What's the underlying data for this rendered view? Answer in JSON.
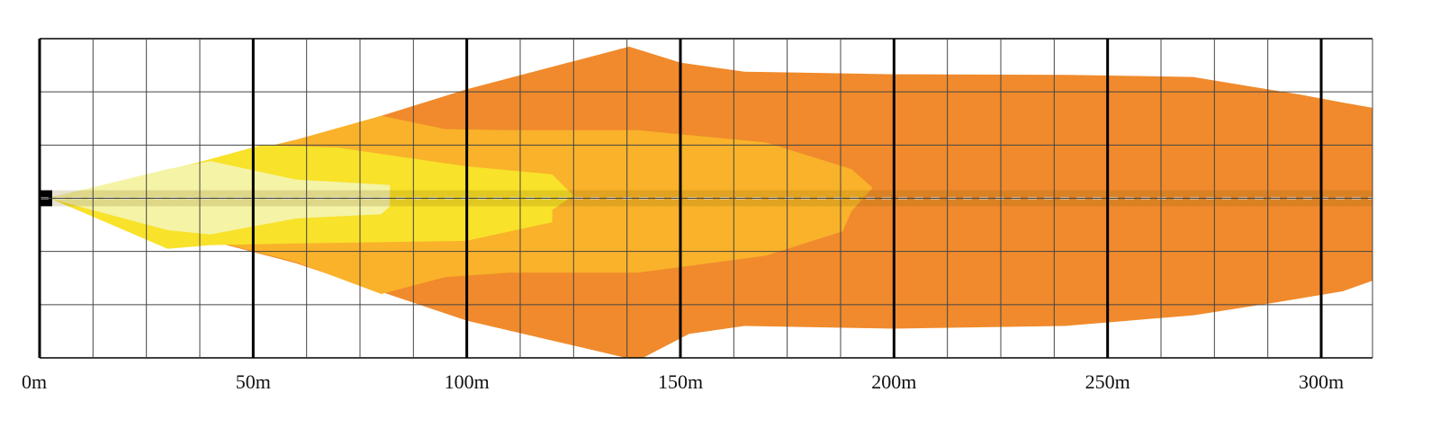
{
  "chart_data": {
    "type": "area",
    "title": "",
    "xlabel": "",
    "ylabel": "",
    "x_unit": "m",
    "x_range": [
      0,
      312
    ],
    "y_range": [
      -3,
      3
    ],
    "x_major_step": 50,
    "x_minor_step": 12.5,
    "y_step": 1,
    "grid": true,
    "x_tick_labels": [
      "0m",
      "50m",
      "100m",
      "150m",
      "200m",
      "250m",
      "300m"
    ],
    "x_tick_values": [
      0,
      50,
      100,
      150,
      200,
      250,
      300
    ],
    "center_road_band_half_width": 0.15,
    "colors": {
      "zone_outer": "#F08A2C",
      "zone_mid": "#F9B22A",
      "zone_inner": "#F8E22A",
      "zone_near": "#F5F3A6",
      "road_band": "#7A5A00",
      "center_dash": "#E8E8E8",
      "grid_minor": "#444444",
      "grid_major": "#000000"
    },
    "zones": [
      {
        "name": "",
        "color_key": "zone_outer",
        "outline": [
          [
            3,
            0.02
          ],
          [
            60,
            1.05
          ],
          [
            100,
            2.05
          ],
          [
            138,
            2.85
          ],
          [
            142,
            2.75
          ],
          [
            150,
            2.55
          ],
          [
            165,
            2.38
          ],
          [
            200,
            2.33
          ],
          [
            240,
            2.32
          ],
          [
            270,
            2.28
          ],
          [
            285,
            2.08
          ],
          [
            295,
            1.95
          ],
          [
            305,
            1.8
          ],
          [
            312,
            1.7
          ],
          [
            312,
            -1.55
          ],
          [
            305,
            -1.75
          ],
          [
            290,
            -1.95
          ],
          [
            270,
            -2.2
          ],
          [
            240,
            -2.4
          ],
          [
            200,
            -2.45
          ],
          [
            165,
            -2.4
          ],
          [
            152,
            -2.55
          ],
          [
            140,
            -3.05
          ],
          [
            100,
            -2.3
          ],
          [
            60,
            -1.22
          ],
          [
            3,
            -0.02
          ]
        ]
      },
      {
        "name": "",
        "color_key": "zone_mid",
        "outline": [
          [
            3,
            0.02
          ],
          [
            60,
            1.1
          ],
          [
            80,
            1.55
          ],
          [
            95,
            1.3
          ],
          [
            110,
            1.28
          ],
          [
            140,
            1.28
          ],
          [
            170,
            1.05
          ],
          [
            190,
            0.55
          ],
          [
            195,
            0.2
          ],
          [
            190,
            -0.25
          ],
          [
            188,
            -0.62
          ],
          [
            170,
            -1.08
          ],
          [
            140,
            -1.4
          ],
          [
            110,
            -1.4
          ],
          [
            95,
            -1.48
          ],
          [
            80,
            -1.8
          ],
          [
            60,
            -1.2
          ],
          [
            3,
            -0.02
          ]
        ]
      },
      {
        "name": "",
        "color_key": "zone_inner",
        "outline": [
          [
            3,
            0.02
          ],
          [
            36,
            0.65
          ],
          [
            52,
            1.0
          ],
          [
            70,
            0.95
          ],
          [
            100,
            0.6
          ],
          [
            120,
            0.45
          ],
          [
            125,
            0.05
          ],
          [
            120,
            -0.22
          ],
          [
            120,
            -0.45
          ],
          [
            100,
            -0.8
          ],
          [
            60,
            -0.85
          ],
          [
            40,
            -0.88
          ],
          [
            30,
            -0.95
          ],
          [
            3,
            -0.02
          ]
        ]
      },
      {
        "name": "",
        "color_key": "zone_near",
        "outline": [
          [
            3,
            0.02
          ],
          [
            30,
            0.55
          ],
          [
            40,
            0.7
          ],
          [
            60,
            0.35
          ],
          [
            82,
            0.25
          ],
          [
            82,
            -0.15
          ],
          [
            80,
            -0.3
          ],
          [
            60,
            -0.38
          ],
          [
            40,
            -0.68
          ],
          [
            30,
            -0.6
          ],
          [
            3,
            -0.02
          ]
        ]
      }
    ]
  }
}
